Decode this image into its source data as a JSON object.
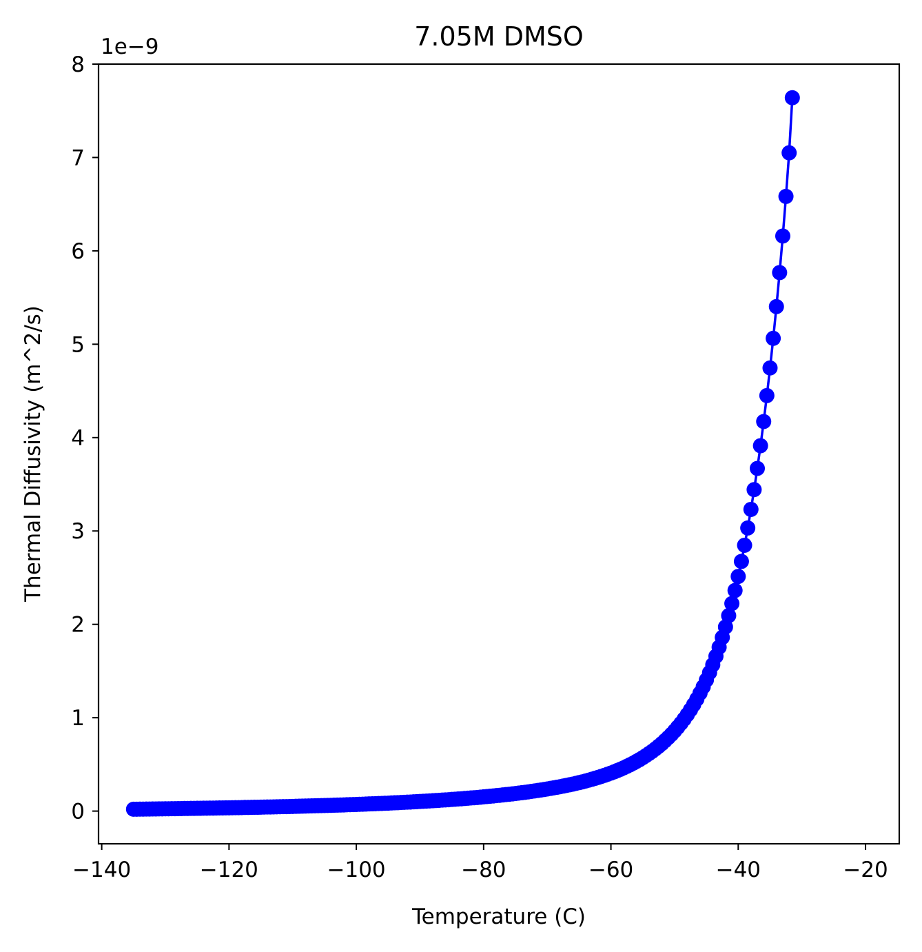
{
  "chart_data": {
    "type": "line",
    "title": "7.05M DMSO",
    "xlabel": "Temperature (C)",
    "ylabel": "Thermal Diffusivity (m^2/s)",
    "y_offset_label": "1e−9",
    "y_multiplier": 1e-09,
    "xlim": [
      -140.5,
      -14.7
    ],
    "ylim": [
      -0.35,
      8.0
    ],
    "x_ticks": [
      -140,
      -120,
      -100,
      -80,
      -60,
      -40,
      -20
    ],
    "x_tick_labels": [
      "−140",
      "−120",
      "−100",
      "−80",
      "−60",
      "−40",
      "−20"
    ],
    "y_ticks": [
      0,
      1,
      2,
      3,
      4,
      5,
      6,
      7,
      8
    ],
    "y_tick_labels": [
      "0",
      "1",
      "2",
      "3",
      "4",
      "5",
      "6",
      "7",
      "8"
    ],
    "grid": false,
    "legend": "none",
    "series": [
      {
        "color": "#0000ff",
        "marker": "circle",
        "x_start": -135,
        "x_step": 0.5,
        "values": [
          0.02,
          0.02,
          0.021,
          0.021,
          0.022,
          0.022,
          0.023,
          0.023,
          0.024,
          0.024,
          0.025,
          0.025,
          0.026,
          0.026,
          0.027,
          0.027,
          0.028,
          0.028,
          0.029,
          0.029,
          0.03,
          0.03,
          0.031,
          0.031,
          0.032,
          0.032,
          0.033,
          0.034,
          0.034,
          0.035,
          0.035,
          0.036,
          0.037,
          0.037,
          0.038,
          0.039,
          0.039,
          0.04,
          0.041,
          0.041,
          0.042,
          0.043,
          0.044,
          0.044,
          0.045,
          0.046,
          0.047,
          0.048,
          0.048,
          0.049,
          0.05,
          0.051,
          0.052,
          0.053,
          0.054,
          0.055,
          0.056,
          0.057,
          0.058,
          0.059,
          0.06,
          0.061,
          0.062,
          0.063,
          0.064,
          0.065,
          0.066,
          0.068,
          0.069,
          0.07,
          0.071,
          0.073,
          0.074,
          0.075,
          0.077,
          0.078,
          0.079,
          0.081,
          0.082,
          0.084,
          0.085,
          0.087,
          0.089,
          0.09,
          0.092,
          0.094,
          0.096,
          0.097,
          0.099,
          0.101,
          0.103,
          0.105,
          0.107,
          0.109,
          0.111,
          0.113,
          0.115,
          0.118,
          0.12,
          0.122,
          0.125,
          0.127,
          0.13,
          0.132,
          0.135,
          0.138,
          0.141,
          0.143,
          0.146,
          0.149,
          0.153,
          0.156,
          0.159,
          0.162,
          0.166,
          0.169,
          0.173,
          0.177,
          0.18,
          0.184,
          0.188,
          0.193,
          0.197,
          0.201,
          0.206,
          0.211,
          0.216,
          0.221,
          0.226,
          0.231,
          0.237,
          0.243,
          0.249,
          0.255,
          0.261,
          0.268,
          0.275,
          0.282,
          0.289,
          0.297,
          0.305,
          0.313,
          0.322,
          0.331,
          0.341,
          0.351,
          0.361,
          0.372,
          0.383,
          0.395,
          0.407,
          0.42,
          0.434,
          0.448,
          0.463,
          0.479,
          0.496,
          0.513,
          0.532,
          0.551,
          0.572,
          0.594,
          0.617,
          0.641,
          0.667,
          0.694,
          0.723,
          0.754,
          0.787,
          0.821,
          0.858,
          0.898,
          0.94,
          0.985,
          1.033,
          1.085,
          1.14,
          1.199,
          1.263,
          1.331,
          1.404,
          1.483,
          1.567,
          1.658,
          1.755,
          1.86,
          1.972,
          2.093,
          2.223,
          2.363,
          2.513,
          2.674,
          2.847,
          3.032,
          3.231,
          3.443,
          3.67,
          3.913,
          4.172,
          4.45,
          4.746,
          5.063,
          5.403,
          5.767,
          6.159,
          6.583,
          7.05,
          7.64
        ]
      }
    ]
  }
}
